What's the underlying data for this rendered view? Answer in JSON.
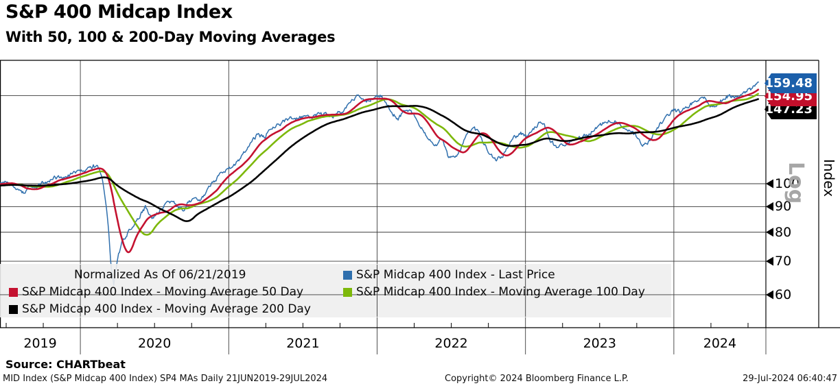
{
  "header": {
    "title": "S&P 400 Midcap Index",
    "subtitle": "With 50, 100 & 200-Day Moving Averages"
  },
  "chart_data": {
    "type": "line",
    "title": "S&P 400 Midcap Index",
    "subtitle": "With 50, 100 & 200-Day Moving Averages",
    "normalized_note": "Normalized As Of 06/21/2019",
    "x_axis": {
      "unit": "decimal_year",
      "range": [
        2019.4584,
        2024.616
      ],
      "year_labels": [
        "2019",
        "2020",
        "2021",
        "2022",
        "2023",
        "2024"
      ],
      "gridline_years": [
        2020,
        2021,
        2022,
        2023,
        2024
      ]
    },
    "y_axis": {
      "title": "Index",
      "scale": "Log",
      "ticks": [
        60,
        70,
        80,
        90,
        100,
        150
      ],
      "visible_range": [
        51.5,
        176.5
      ]
    },
    "series": [
      {
        "name": "S&P Midcap 400 Index - Last Price",
        "type": "price",
        "color": "#2f6fad",
        "last_value": 159.48,
        "x": [
          2019.458,
          2019.5,
          2019.54,
          2019.58,
          2019.62,
          2019.66,
          2019.7,
          2019.74,
          2019.79,
          2019.83,
          2019.88,
          2019.92,
          2019.96,
          2020.0,
          2020.04,
          2020.09,
          2020.13,
          2020.155,
          2020.18,
          2020.205,
          2020.225,
          2020.25,
          2020.28,
          2020.32,
          2020.36,
          2020.4,
          2020.44,
          2020.48,
          2020.52,
          2020.56,
          2020.61,
          2020.65,
          2020.69,
          2020.73,
          2020.77,
          2020.81,
          2020.85,
          2020.9,
          2020.94,
          2020.98,
          2021.02,
          2021.06,
          2021.1,
          2021.15,
          2021.19,
          2021.24,
          2021.28,
          2021.33,
          2021.38,
          2021.42,
          2021.47,
          2021.52,
          2021.56,
          2021.6,
          2021.65,
          2021.7,
          2021.74,
          2021.78,
          2021.82,
          2021.86,
          2021.9,
          2021.94,
          2021.98,
          2022.02,
          2022.06,
          2022.1,
          2022.14,
          2022.18,
          2022.22,
          2022.27,
          2022.31,
          2022.35,
          2022.39,
          2022.44,
          2022.48,
          2022.52,
          2022.56,
          2022.6,
          2022.64,
          2022.68,
          2022.72,
          2022.76,
          2022.8,
          2022.85,
          2022.89,
          2022.93,
          2022.97,
          2023.01,
          2023.05,
          2023.09,
          2023.13,
          2023.17,
          2023.21,
          2023.26,
          2023.3,
          2023.35,
          2023.4,
          2023.45,
          2023.5,
          2023.54,
          2023.58,
          2023.62,
          2023.66,
          2023.7,
          2023.74,
          2023.79,
          2023.83,
          2023.87,
          2023.91,
          2023.95,
          2024.0,
          2024.04,
          2024.08,
          2024.12,
          2024.17,
          2024.21,
          2024.25,
          2024.29,
          2024.33,
          2024.37,
          2024.42,
          2024.46,
          2024.5,
          2024.53,
          2024.56,
          2024.575
        ],
        "values": [
          100,
          101.5,
          99.5,
          96.5,
          96,
          98.5,
          98,
          100,
          101.5,
          103,
          102.5,
          104,
          105,
          105.5,
          107,
          108.5,
          107,
          100,
          88,
          70,
          62,
          71,
          76,
          80,
          83,
          86,
          90,
          85,
          87,
          90,
          92,
          91,
          88.5,
          92,
          94,
          92,
          96.5,
          101,
          104,
          106.5,
          108,
          111,
          115,
          121,
          125,
          124,
          128,
          131,
          134,
          136,
          135,
          136.5,
          135.5,
          137,
          138,
          136.5,
          138.5,
          141,
          144,
          150,
          147,
          146,
          149,
          150.5,
          146,
          138,
          135,
          139,
          141,
          133,
          128,
          122,
          118,
          123,
          113,
          112.5,
          117,
          124,
          130,
          127,
          120,
          115,
          111.5,
          114,
          120,
          124,
          126,
          124,
          128,
          132,
          130,
          122,
          118,
          120,
          121,
          122,
          125,
          127,
          130,
          133.5,
          134,
          132,
          130,
          128,
          125,
          119,
          121,
          126,
          132,
          137,
          140,
          139,
          142,
          144.5,
          147,
          148,
          142,
          144,
          147.5,
          150,
          148.5,
          151,
          153,
          155,
          157.5,
          159.48
        ]
      },
      {
        "name": "S&P Midcap 400 Index - Moving Average 50 Day",
        "type": "moving_average",
        "window_days": 50,
        "color": "#c41230",
        "last_value": 154.95
      },
      {
        "name": "S&P Midcap 400 Index - Moving Average 100 Day",
        "type": "moving_average",
        "window_days": 100,
        "color": "#7db80a"
      },
      {
        "name": "S&P Midcap 400 Index - Moving Average 200 Day",
        "type": "moving_average",
        "window_days": 200,
        "color": "#000000",
        "last_value": 147.23
      }
    ]
  },
  "price_flags": [
    {
      "value": "159.48",
      "bg": "#1b5faa",
      "series": "last-price"
    },
    {
      "value": "154.95",
      "bg": "#c20f2b",
      "series": "moving-average-50-day"
    },
    {
      "value": "147.23",
      "bg": "#000000",
      "series": "moving-average-200-day"
    }
  ],
  "legend": {
    "note": "Normalized As Of 06/21/2019",
    "items": [
      {
        "label": "S&P Midcap 400 Index - Last Price",
        "color": "#2f6fad"
      },
      {
        "label": "S&P Midcap 400 Index - Moving Average 50 Day",
        "color": "#c41230"
      },
      {
        "label": "S&P Midcap 400 Index - Moving Average 100 Day",
        "color": "#7db80a"
      },
      {
        "label": "S&P Midcap 400 Index - Moving Average 200 Day",
        "color": "#000000"
      }
    ]
  },
  "axis_labels": {
    "y_title": "Index",
    "y_scale": "Log"
  },
  "footer": {
    "source": "Source: CHARTbeat",
    "meta": "MID Index (S&P Midcap 400 Index) SP4 MAs  Daily 21JUN2019-29JUL2024",
    "copyright": "Copyright© 2024 Bloomberg Finance L.P.",
    "timestamp": "29-Jul-2024 06:40:47"
  }
}
